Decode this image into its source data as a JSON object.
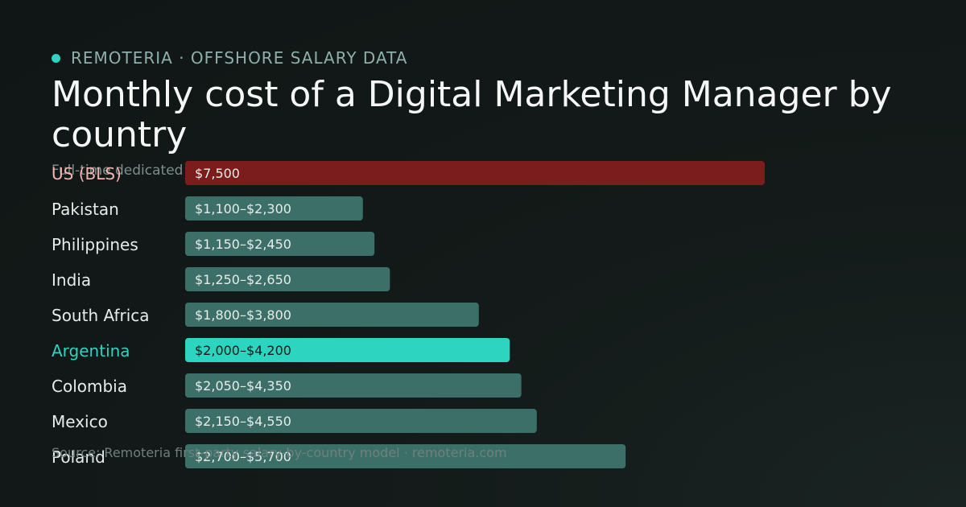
{
  "header": {
    "brand": "REMOTERIA · OFFSHORE SALARY DATA",
    "title": "Monthly cost of a Digital Marketing Manager by country",
    "subtitle": "Full-time dedicated",
    "source": "Source: Remoteria first-party salary-by-country model · remoteria.com"
  },
  "colors": {
    "brand_dot": "#2dd4bf",
    "baseline_bar": "#7c1d1d",
    "default_bar": "#3d6f69",
    "highlight_bar": "#2dd4bf",
    "highlight_text": "#2dd4bf",
    "default_text": "#e6ecea",
    "baseline_text": "#f3b4b4"
  },
  "chart_data": {
    "type": "bar",
    "orientation": "horizontal",
    "title": "Monthly cost of a Digital Marketing Manager by country",
    "categories": [
      "US (BLS)",
      "Pakistan",
      "Philippines",
      "India",
      "South Africa",
      "Argentina",
      "Colombia",
      "Mexico",
      "Poland"
    ],
    "values": [
      7500,
      2300,
      2450,
      2650,
      3800,
      4200,
      4350,
      4550,
      5700
    ],
    "ranges": [
      [
        7500,
        7500
      ],
      [
        1100,
        2300
      ],
      [
        1150,
        2450
      ],
      [
        1250,
        2650
      ],
      [
        1800,
        3800
      ],
      [
        2000,
        4200
      ],
      [
        2050,
        4350
      ],
      [
        2150,
        4550
      ],
      [
        2700,
        5700
      ]
    ],
    "bar_labels": [
      "$7,500",
      "$1,100–$2,300",
      "$1,150–$2,450",
      "$1,250–$2,650",
      "$1,800–$3,800",
      "$2,000–$4,200",
      "$2,050–$4,350",
      "$2,150–$4,550",
      "$2,700–$5,700"
    ],
    "styles": [
      "baseline",
      "default",
      "default",
      "default",
      "default",
      "highlight",
      "default",
      "default",
      "default"
    ],
    "xlim": [
      0,
      7500
    ],
    "grid": false,
    "legend": "none"
  }
}
